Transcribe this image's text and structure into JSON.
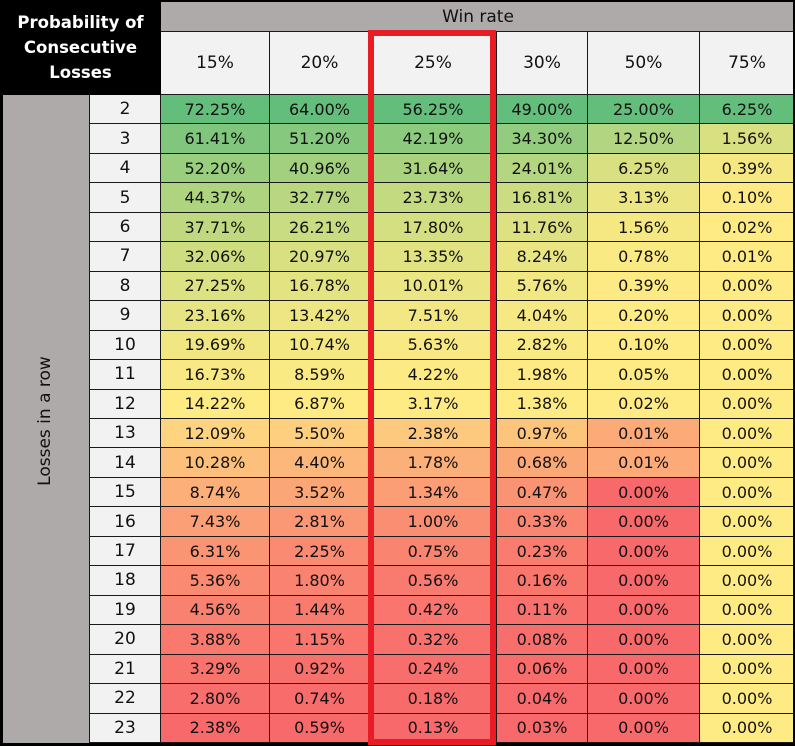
{
  "table": {
    "title_lines": [
      "Probability of",
      "Consecutive",
      "Losses"
    ],
    "column_group_label": "Win rate",
    "row_group_label": "Losses in a row",
    "columns": [
      "15%",
      "20%",
      "25%",
      "30%",
      "50%",
      "75%"
    ],
    "highlighted_column": "25%",
    "highlight_color": "#e81c24",
    "color_scale": {
      "low": "#f8696b",
      "mid": "#ffeb84",
      "high": "#63be7b"
    },
    "rows": [
      {
        "losses": "2",
        "values": [
          "72.25%",
          "64.00%",
          "56.25%",
          "49.00%",
          "25.00%",
          "6.25%"
        ]
      },
      {
        "losses": "3",
        "values": [
          "61.41%",
          "51.20%",
          "42.19%",
          "34.30%",
          "12.50%",
          "1.56%"
        ]
      },
      {
        "losses": "4",
        "values": [
          "52.20%",
          "40.96%",
          "31.64%",
          "24.01%",
          "6.25%",
          "0.39%"
        ]
      },
      {
        "losses": "5",
        "values": [
          "44.37%",
          "32.77%",
          "23.73%",
          "16.81%",
          "3.13%",
          "0.10%"
        ]
      },
      {
        "losses": "6",
        "values": [
          "37.71%",
          "26.21%",
          "17.80%",
          "11.76%",
          "1.56%",
          "0.02%"
        ]
      },
      {
        "losses": "7",
        "values": [
          "32.06%",
          "20.97%",
          "13.35%",
          "8.24%",
          "0.78%",
          "0.01%"
        ]
      },
      {
        "losses": "8",
        "values": [
          "27.25%",
          "16.78%",
          "10.01%",
          "5.76%",
          "0.39%",
          "0.00%"
        ]
      },
      {
        "losses": "9",
        "values": [
          "23.16%",
          "13.42%",
          "7.51%",
          "4.04%",
          "0.20%",
          "0.00%"
        ]
      },
      {
        "losses": "10",
        "values": [
          "19.69%",
          "10.74%",
          "5.63%",
          "2.82%",
          "0.10%",
          "0.00%"
        ]
      },
      {
        "losses": "11",
        "values": [
          "16.73%",
          "8.59%",
          "4.22%",
          "1.98%",
          "0.05%",
          "0.00%"
        ]
      },
      {
        "losses": "12",
        "values": [
          "14.22%",
          "6.87%",
          "3.17%",
          "1.38%",
          "0.02%",
          "0.00%"
        ]
      },
      {
        "losses": "13",
        "values": [
          "12.09%",
          "5.50%",
          "2.38%",
          "0.97%",
          "0.01%",
          "0.00%"
        ]
      },
      {
        "losses": "14",
        "values": [
          "10.28%",
          "4.40%",
          "1.78%",
          "0.68%",
          "0.01%",
          "0.00%"
        ]
      },
      {
        "losses": "15",
        "values": [
          "8.74%",
          "3.52%",
          "1.34%",
          "0.47%",
          "0.00%",
          "0.00%"
        ]
      },
      {
        "losses": "16",
        "values": [
          "7.43%",
          "2.81%",
          "1.00%",
          "0.33%",
          "0.00%",
          "0.00%"
        ]
      },
      {
        "losses": "17",
        "values": [
          "6.31%",
          "2.25%",
          "0.75%",
          "0.23%",
          "0.00%",
          "0.00%"
        ]
      },
      {
        "losses": "18",
        "values": [
          "5.36%",
          "1.80%",
          "0.56%",
          "0.16%",
          "0.00%",
          "0.00%"
        ]
      },
      {
        "losses": "19",
        "values": [
          "4.56%",
          "1.44%",
          "0.42%",
          "0.11%",
          "0.00%",
          "0.00%"
        ]
      },
      {
        "losses": "20",
        "values": [
          "3.88%",
          "1.15%",
          "0.32%",
          "0.08%",
          "0.00%",
          "0.00%"
        ]
      },
      {
        "losses": "21",
        "values": [
          "3.29%",
          "0.92%",
          "0.24%",
          "0.06%",
          "0.00%",
          "0.00%"
        ]
      },
      {
        "losses": "22",
        "values": [
          "2.80%",
          "0.74%",
          "0.18%",
          "0.04%",
          "0.00%",
          "0.00%"
        ]
      },
      {
        "losses": "23",
        "values": [
          "2.38%",
          "0.59%",
          "0.13%",
          "0.03%",
          "0.00%",
          "0.00%"
        ]
      }
    ]
  },
  "chart_data": {
    "type": "heatmap",
    "title": "Probability of Consecutive Losses",
    "xlabel": "Win rate",
    "ylabel": "Losses in a row",
    "x": [
      "15%",
      "20%",
      "25%",
      "30%",
      "50%",
      "75%"
    ],
    "y": [
      2,
      3,
      4,
      5,
      6,
      7,
      8,
      9,
      10,
      11,
      12,
      13,
      14,
      15,
      16,
      17,
      18,
      19,
      20,
      21,
      22,
      23
    ],
    "values": [
      [
        72.25,
        64.0,
        56.25,
        49.0,
        25.0,
        6.25
      ],
      [
        61.41,
        51.2,
        42.19,
        34.3,
        12.5,
        1.56
      ],
      [
        52.2,
        40.96,
        31.64,
        24.01,
        6.25,
        0.39
      ],
      [
        44.37,
        32.77,
        23.73,
        16.81,
        3.13,
        0.1
      ],
      [
        37.71,
        26.21,
        17.8,
        11.76,
        1.56,
        0.02
      ],
      [
        32.06,
        20.97,
        13.35,
        8.24,
        0.78,
        0.01
      ],
      [
        27.25,
        16.78,
        10.01,
        5.76,
        0.39,
        0.0
      ],
      [
        23.16,
        13.42,
        7.51,
        4.04,
        0.2,
        0.0
      ],
      [
        19.69,
        10.74,
        5.63,
        2.82,
        0.1,
        0.0
      ],
      [
        16.73,
        8.59,
        4.22,
        1.98,
        0.05,
        0.0
      ],
      [
        14.22,
        6.87,
        3.17,
        1.38,
        0.02,
        0.0
      ],
      [
        12.09,
        5.5,
        2.38,
        0.97,
        0.01,
        0.0
      ],
      [
        10.28,
        4.4,
        1.78,
        0.68,
        0.01,
        0.0
      ],
      [
        8.74,
        3.52,
        1.34,
        0.47,
        0.0,
        0.0
      ],
      [
        7.43,
        2.81,
        1.0,
        0.33,
        0.0,
        0.0
      ],
      [
        6.31,
        2.25,
        0.75,
        0.23,
        0.0,
        0.0
      ],
      [
        5.36,
        1.8,
        0.56,
        0.16,
        0.0,
        0.0
      ],
      [
        4.56,
        1.44,
        0.42,
        0.11,
        0.0,
        0.0
      ],
      [
        3.88,
        1.15,
        0.32,
        0.08,
        0.0,
        0.0
      ],
      [
        3.29,
        0.92,
        0.24,
        0.06,
        0.0,
        0.0
      ],
      [
        2.8,
        0.74,
        0.18,
        0.04,
        0.0,
        0.0
      ],
      [
        2.38,
        0.59,
        0.13,
        0.03,
        0.0,
        0.0
      ]
    ],
    "unit": "%",
    "annotations": [
      "25% win rate column highlighted with red box"
    ]
  }
}
